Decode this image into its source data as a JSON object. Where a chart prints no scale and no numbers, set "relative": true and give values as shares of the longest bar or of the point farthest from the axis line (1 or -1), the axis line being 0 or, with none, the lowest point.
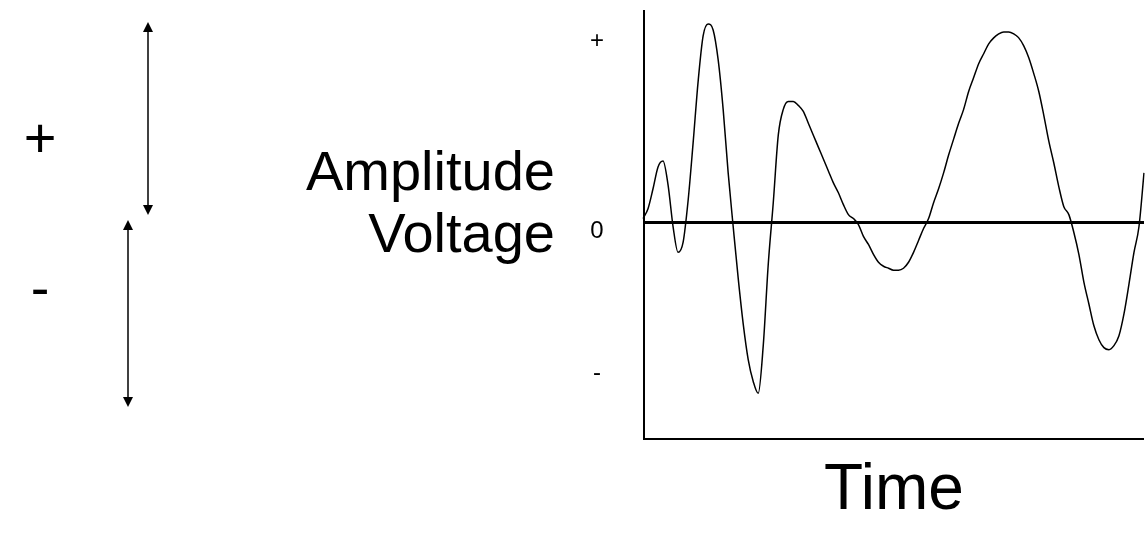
{
  "chart_data": {
    "type": "line",
    "relative": true,
    "color": "#000000",
    "xlabel": "Time",
    "ylabel": "Amplitude Voltage",
    "annotations": [
      "+",
      "0",
      "-",
      "+",
      "-"
    ],
    "categories": [
      null,
      null,
      null,
      null,
      null,
      null,
      null,
      null,
      null,
      null,
      null,
      null,
      null,
      null,
      null,
      null,
      null,
      null,
      null,
      null,
      null,
      null,
      null,
      null,
      null,
      null,
      null,
      null,
      null,
      null,
      null,
      null,
      null,
      null,
      null,
      null,
      null,
      null,
      null,
      null,
      null,
      null,
      null,
      null,
      null,
      null,
      null,
      null,
      null,
      null,
      null,
      null,
      null,
      null,
      null,
      null,
      null,
      null,
      null,
      null,
      null,
      null,
      null,
      null,
      null,
      null,
      null,
      null,
      null,
      null,
      null,
      null,
      null,
      null,
      null,
      null,
      null,
      null,
      null,
      null,
      null,
      null,
      null,
      null,
      null,
      null,
      null,
      null,
      null,
      null,
      null,
      null,
      null,
      null,
      null,
      null,
      null,
      null,
      null,
      null,
      null
    ],
    "values": [
      0.02,
      0.07,
      0.17,
      0.28,
      0.31,
      0.19,
      -0.02,
      -0.15,
      -0.1,
      0.11,
      0.4,
      0.71,
      0.94,
      1.0,
      0.97,
      0.82,
      0.57,
      0.25,
      -0.02,
      -0.28,
      -0.51,
      -0.69,
      -0.8,
      -0.86,
      -0.62,
      -0.21,
      0.1,
      0.44,
      0.57,
      0.61,
      0.61,
      0.59,
      0.56,
      0.5,
      0.44,
      0.38,
      0.32,
      0.26,
      0.2,
      0.15,
      0.09,
      0.04,
      0.02,
      -0.01,
      -0.07,
      -0.11,
      -0.16,
      -0.2,
      -0.22,
      -0.23,
      -0.24,
      -0.24,
      -0.23,
      -0.2,
      -0.15,
      -0.09,
      -0.03,
      0.02,
      0.1,
      0.17,
      0.25,
      0.34,
      0.42,
      0.5,
      0.57,
      0.66,
      0.73,
      0.8,
      0.85,
      0.9,
      0.93,
      0.95,
      0.96,
      0.96,
      0.95,
      0.93,
      0.89,
      0.83,
      0.75,
      0.66,
      0.54,
      0.41,
      0.3,
      0.18,
      0.08,
      0.04,
      -0.05,
      -0.16,
      -0.3,
      -0.41,
      -0.52,
      -0.59,
      -0.63,
      -0.64,
      -0.62,
      -0.57,
      -0.46,
      -0.31,
      -0.15,
      -0.02,
      0.25
    ]
  }
}
